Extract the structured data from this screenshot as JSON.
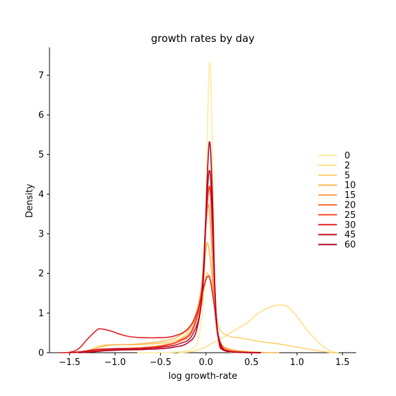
{
  "chart_data": {
    "type": "line",
    "title": "growth rates by day",
    "xlabel": "log growth-rate",
    "ylabel": "Density",
    "xlim": [
      -1.72,
      1.65
    ],
    "ylim": [
      0,
      7.7
    ],
    "xticks": [
      -1.5,
      -1.0,
      -0.5,
      0.0,
      0.5,
      1.0,
      1.5
    ],
    "xtick_labels": [
      "−1.5",
      "−1.0",
      "−0.5",
      "0.0",
      "0.5",
      "1.0",
      "1.5"
    ],
    "yticks": [
      0,
      1,
      2,
      3,
      4,
      5,
      6,
      7
    ],
    "ytick_labels": [
      "0",
      "1",
      "2",
      "3",
      "4",
      "5",
      "6",
      "7"
    ],
    "grid": false,
    "legend_position": "right",
    "series": [
      {
        "name": "0",
        "color": "#ffec9c",
        "points": [
          [
            -0.75,
            0
          ],
          [
            -0.5,
            0.003
          ],
          [
            -0.3,
            0.02
          ],
          [
            -0.15,
            0.1
          ],
          [
            -0.08,
            0.4
          ],
          [
            -0.02,
            1.7
          ],
          [
            0.01,
            5.0
          ],
          [
            0.04,
            7.32
          ],
          [
            0.07,
            5.2
          ],
          [
            0.1,
            1.6
          ],
          [
            0.14,
            0.3
          ],
          [
            0.2,
            0.05
          ],
          [
            0.35,
            0.005
          ],
          [
            0.6,
            0
          ]
        ]
      },
      {
        "name": "2",
        "color": "#fee086",
        "points": [
          [
            -0.3,
            0
          ],
          [
            -0.15,
            0.03
          ],
          [
            0.0,
            0.15
          ],
          [
            0.1,
            0.28
          ],
          [
            0.2,
            0.4
          ],
          [
            0.3,
            0.55
          ],
          [
            0.4,
            0.68
          ],
          [
            0.48,
            0.8
          ],
          [
            0.55,
            0.95
          ],
          [
            0.62,
            1.06
          ],
          [
            0.7,
            1.15
          ],
          [
            0.8,
            1.2
          ],
          [
            0.88,
            1.18
          ],
          [
            0.95,
            1.05
          ],
          [
            1.02,
            0.85
          ],
          [
            1.1,
            0.6
          ],
          [
            1.2,
            0.35
          ],
          [
            1.3,
            0.13
          ],
          [
            1.38,
            0.03
          ],
          [
            1.45,
            0
          ]
        ]
      },
      {
        "name": "5",
        "color": "#fed06f",
        "points": [
          [
            -1.45,
            0
          ],
          [
            -1.3,
            0.05
          ],
          [
            -1.15,
            0.18
          ],
          [
            -1.0,
            0.2
          ],
          [
            -0.8,
            0.2
          ],
          [
            -0.6,
            0.22
          ],
          [
            -0.4,
            0.27
          ],
          [
            -0.25,
            0.4
          ],
          [
            -0.15,
            0.7
          ],
          [
            -0.05,
            1.2
          ],
          [
            0.0,
            1.9
          ],
          [
            0.02,
            2.0
          ],
          [
            0.05,
            1.8
          ],
          [
            0.1,
            1.1
          ],
          [
            0.15,
            0.6
          ],
          [
            0.25,
            0.42
          ],
          [
            0.4,
            0.36
          ],
          [
            0.6,
            0.28
          ],
          [
            0.8,
            0.22
          ],
          [
            1.0,
            0.14
          ],
          [
            1.2,
            0.06
          ],
          [
            1.35,
            0.01
          ],
          [
            1.45,
            0
          ]
        ]
      },
      {
        "name": "10",
        "color": "#feb752",
        "points": [
          [
            -1.45,
            0
          ],
          [
            -1.3,
            0.06
          ],
          [
            -1.15,
            0.15
          ],
          [
            -1.0,
            0.2
          ],
          [
            -0.8,
            0.21
          ],
          [
            -0.6,
            0.25
          ],
          [
            -0.45,
            0.3
          ],
          [
            -0.3,
            0.42
          ],
          [
            -0.15,
            0.75
          ],
          [
            -0.05,
            1.6
          ],
          [
            0.0,
            2.6
          ],
          [
            0.02,
            2.75
          ],
          [
            0.05,
            2.3
          ],
          [
            0.1,
            1.0
          ],
          [
            0.15,
            0.3
          ],
          [
            0.25,
            0.1
          ],
          [
            0.4,
            0.04
          ],
          [
            0.6,
            0.01
          ],
          [
            0.8,
            0
          ]
        ]
      },
      {
        "name": "15",
        "color": "#fd9b43",
        "points": [
          [
            -1.45,
            0
          ],
          [
            -1.3,
            0.04
          ],
          [
            -1.15,
            0.08
          ],
          [
            -1.0,
            0.1
          ],
          [
            -0.8,
            0.12
          ],
          [
            -0.6,
            0.15
          ],
          [
            -0.45,
            0.2
          ],
          [
            -0.3,
            0.3
          ],
          [
            -0.15,
            0.6
          ],
          [
            -0.05,
            1.5
          ],
          [
            0.0,
            3.2
          ],
          [
            0.03,
            3.72
          ],
          [
            0.06,
            2.8
          ],
          [
            0.1,
            1.0
          ],
          [
            0.15,
            0.25
          ],
          [
            0.25,
            0.08
          ],
          [
            0.4,
            0.03
          ],
          [
            0.6,
            0
          ]
        ]
      },
      {
        "name": "20",
        "color": "#fc7033",
        "points": [
          [
            -1.45,
            0
          ],
          [
            -1.3,
            0.03
          ],
          [
            -1.15,
            0.06
          ],
          [
            -1.0,
            0.08
          ],
          [
            -0.8,
            0.1
          ],
          [
            -0.6,
            0.14
          ],
          [
            -0.45,
            0.19
          ],
          [
            -0.3,
            0.3
          ],
          [
            -0.15,
            0.6
          ],
          [
            -0.05,
            1.6
          ],
          [
            0.0,
            3.4
          ],
          [
            0.04,
            4.15
          ],
          [
            0.07,
            3.0
          ],
          [
            0.11,
            1.0
          ],
          [
            0.16,
            0.2
          ],
          [
            0.25,
            0.05
          ],
          [
            0.4,
            0.01
          ],
          [
            0.6,
            0
          ]
        ]
      },
      {
        "name": "25",
        "color": "#f84428",
        "points": [
          [
            -1.45,
            0
          ],
          [
            -1.3,
            0.03
          ],
          [
            -1.15,
            0.06
          ],
          [
            -1.0,
            0.08
          ],
          [
            -0.8,
            0.1
          ],
          [
            -0.6,
            0.13
          ],
          [
            -0.45,
            0.18
          ],
          [
            -0.3,
            0.28
          ],
          [
            -0.15,
            0.55
          ],
          [
            -0.05,
            1.5
          ],
          [
            0.0,
            3.3
          ],
          [
            0.04,
            4.2
          ],
          [
            0.07,
            3.1
          ],
          [
            0.11,
            1.0
          ],
          [
            0.16,
            0.2
          ],
          [
            0.25,
            0.04
          ],
          [
            0.4,
            0.01
          ],
          [
            0.6,
            0
          ]
        ]
      },
      {
        "name": "30",
        "color": "#e31a1c",
        "points": [
          [
            -1.6,
            0
          ],
          [
            -1.5,
            0.01
          ],
          [
            -1.4,
            0.1
          ],
          [
            -1.3,
            0.35
          ],
          [
            -1.2,
            0.57
          ],
          [
            -1.15,
            0.6
          ],
          [
            -1.05,
            0.55
          ],
          [
            -0.95,
            0.47
          ],
          [
            -0.85,
            0.41
          ],
          [
            -0.7,
            0.38
          ],
          [
            -0.5,
            0.38
          ],
          [
            -0.35,
            0.42
          ],
          [
            -0.2,
            0.6
          ],
          [
            -0.1,
            1.0
          ],
          [
            -0.02,
            1.7
          ],
          [
            0.02,
            1.93
          ],
          [
            0.05,
            1.8
          ],
          [
            0.09,
            1.2
          ],
          [
            0.13,
            0.5
          ],
          [
            0.18,
            0.15
          ],
          [
            0.25,
            0.04
          ],
          [
            0.4,
            0.01
          ],
          [
            0.6,
            0
          ]
        ]
      },
      {
        "name": "45",
        "color": "#c8081e",
        "points": [
          [
            -1.5,
            0
          ],
          [
            -1.35,
            0.03
          ],
          [
            -1.2,
            0.08
          ],
          [
            -1.0,
            0.1
          ],
          [
            -0.8,
            0.1
          ],
          [
            -0.6,
            0.12
          ],
          [
            -0.45,
            0.15
          ],
          [
            -0.3,
            0.22
          ],
          [
            -0.15,
            0.45
          ],
          [
            -0.05,
            1.3
          ],
          [
            0.0,
            3.5
          ],
          [
            0.04,
            4.6
          ],
          [
            0.07,
            3.4
          ],
          [
            0.11,
            1.0
          ],
          [
            0.16,
            0.18
          ],
          [
            0.25,
            0.04
          ],
          [
            0.4,
            0.01
          ],
          [
            0.6,
            0
          ]
        ]
      },
      {
        "name": "60",
        "color": "#b10026",
        "points": [
          [
            -1.4,
            0
          ],
          [
            -1.25,
            0.02
          ],
          [
            -1.1,
            0.05
          ],
          [
            -0.9,
            0.07
          ],
          [
            -0.7,
            0.08
          ],
          [
            -0.5,
            0.1
          ],
          [
            -0.35,
            0.14
          ],
          [
            -0.2,
            0.25
          ],
          [
            -0.1,
            0.6
          ],
          [
            -0.03,
            1.8
          ],
          [
            0.01,
            4.2
          ],
          [
            0.04,
            5.32
          ],
          [
            0.07,
            4.0
          ],
          [
            0.1,
            1.5
          ],
          [
            0.14,
            0.3
          ],
          [
            0.2,
            0.06
          ],
          [
            0.35,
            0.01
          ],
          [
            0.6,
            0
          ]
        ]
      }
    ]
  }
}
